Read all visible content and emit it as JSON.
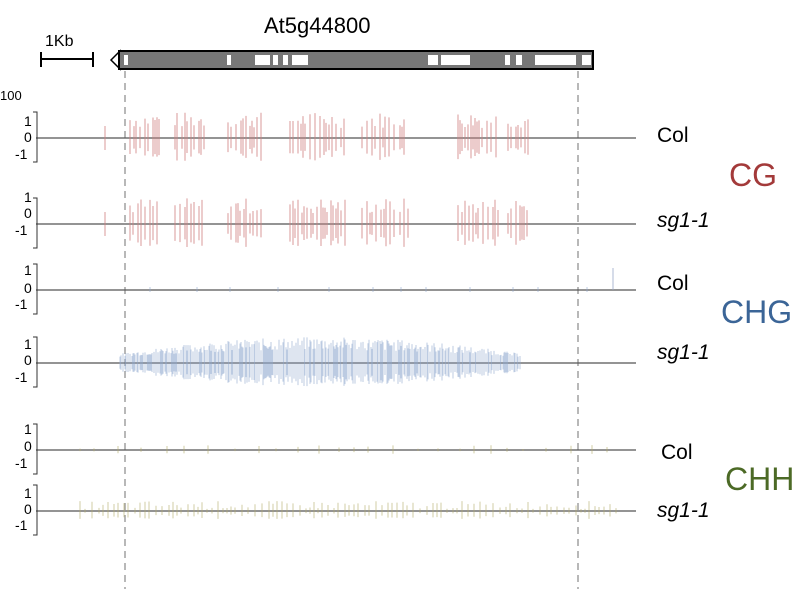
{
  "gene": {
    "name": "At5g44800",
    "scale_bar_label": "1Kb"
  },
  "y_axis_clipped_label": "100",
  "contexts": [
    {
      "label": "CG",
      "color": "#a33a3a",
      "tick_color": "#d08080"
    },
    {
      "label": "CHG",
      "color": "#3b6597",
      "tick_color": "#8fa8cf"
    },
    {
      "label": "CHH",
      "color": "#4c6a26",
      "tick_color": "#b4ab68"
    }
  ],
  "tracks": [
    {
      "sample": "Col",
      "context": "CG",
      "ticks": [
        "1",
        "0",
        "-1"
      ]
    },
    {
      "sample": "sg1-1",
      "context": "CG",
      "ticks": [
        "1",
        "0",
        "-1"
      ]
    },
    {
      "sample": "Col",
      "context": "CHG",
      "ticks": [
        "1",
        "0",
        "-1"
      ]
    },
    {
      "sample": "sg1-1",
      "context": "CHG",
      "ticks": [
        "1",
        "0",
        "-1"
      ]
    },
    {
      "sample": "Col",
      "context": "CHH",
      "ticks": [
        "1",
        "0",
        "-1"
      ]
    },
    {
      "sample": "sg1-1",
      "context": "CHH",
      "ticks": [
        "1",
        "0",
        "-1"
      ]
    }
  ]
}
